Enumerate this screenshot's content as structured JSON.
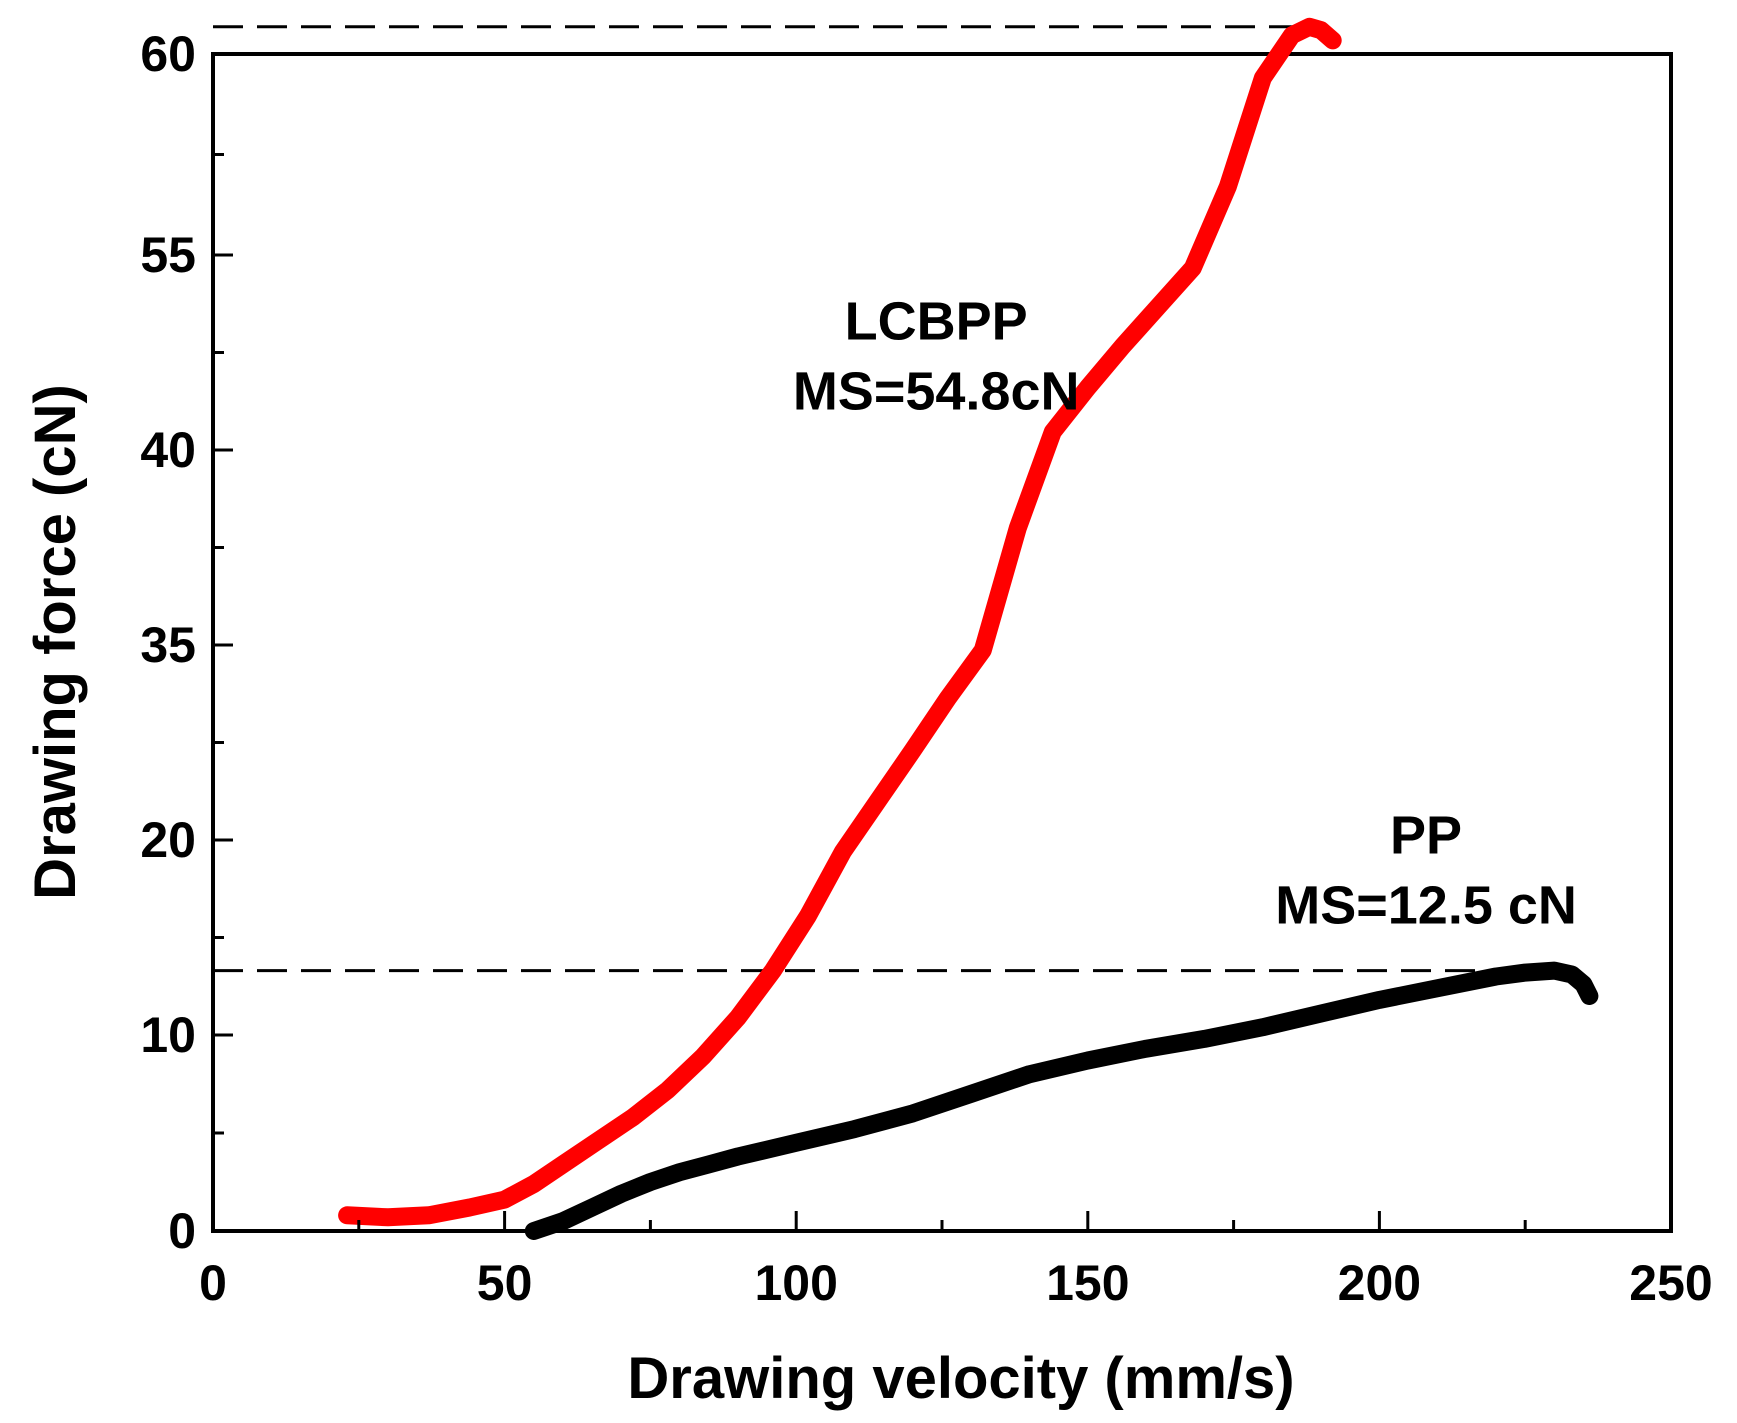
{
  "chart_data": {
    "type": "line",
    "title": "",
    "xlabel": "Drawing velocity (mm/s)",
    "ylabel": "Drawing force (cN)",
    "xlim": [
      0,
      250
    ],
    "ylim": [
      0,
      60
    ],
    "x_ticks": [
      0,
      50,
      100,
      150,
      200,
      250
    ],
    "x_tick_labels": [
      "0",
      "50",
      "100",
      "150",
      "200",
      "250"
    ],
    "y_ticks": [
      0,
      10,
      20,
      35,
      40,
      55,
      60
    ],
    "y_tick_labels": [
      "0",
      "10",
      "20",
      "35",
      "40",
      "55",
      "60"
    ],
    "grid": false,
    "series": [
      {
        "name": "LCBPP",
        "color": "#ff0000",
        "x": [
          23,
          30,
          37,
          44,
          50,
          55,
          60,
          66,
          72,
          78,
          84,
          90,
          96,
          102,
          108,
          114,
          120,
          126,
          132,
          138,
          144,
          150,
          156,
          162,
          168,
          174,
          180,
          185,
          188,
          190,
          192
        ],
        "y": [
          0.8,
          0.7,
          0.8,
          1.2,
          1.6,
          2.4,
          3.4,
          4.6,
          5.8,
          7.2,
          8.9,
          10.9,
          13.3,
          16.1,
          19.4,
          23.0,
          26.9,
          30.9,
          34.6,
          38.0,
          41.4,
          44.8,
          48.0,
          51.0,
          54.0,
          56.7,
          59.4,
          61.1,
          61.6,
          61.4,
          60.8
        ]
      },
      {
        "name": "PP",
        "color": "#000000",
        "x": [
          55,
          60,
          65,
          70,
          75,
          80,
          85,
          90,
          100,
          110,
          120,
          130,
          140,
          150,
          160,
          170,
          180,
          190,
          200,
          210,
          220,
          225,
          230,
          233,
          235,
          236
        ],
        "y": [
          0,
          0.5,
          1.2,
          1.9,
          2.5,
          3.0,
          3.4,
          3.8,
          4.5,
          5.2,
          6.0,
          7.0,
          8.0,
          8.7,
          9.3,
          9.8,
          10.4,
          11.1,
          11.8,
          12.4,
          13.0,
          13.2,
          13.3,
          13.1,
          12.6,
          12.0
        ]
      }
    ],
    "reference_lines": [
      {
        "name": "LCBPP max",
        "y": 61.6,
        "x_start": 0,
        "x_end": 190,
        "style": "dashed"
      },
      {
        "name": "PP max",
        "y": 13.3,
        "x_start": 0,
        "x_end": 230,
        "style": "dashed"
      }
    ],
    "annotations": [
      {
        "series": "LCBPP",
        "x": 124,
        "y": 48.5,
        "lines": [
          "LCBPP",
          "MS=54.8cN"
        ]
      },
      {
        "series": "PP",
        "x": 208,
        "y": 19.3,
        "lines": [
          "PP",
          "MS=12.5 cN"
        ]
      }
    ]
  }
}
